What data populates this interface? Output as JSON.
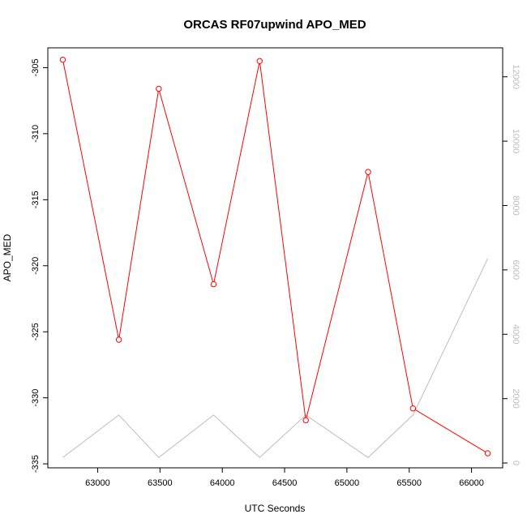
{
  "chart_data": {
    "type": "line",
    "title": "ORCAS RF07upwind APO_MED",
    "xlabel": "UTC Seconds",
    "ylabel": "APO_MED",
    "xlim": [
      62600,
      66250
    ],
    "ylim": [
      -335.3,
      -303.5
    ],
    "y2lim": [
      -150,
      12900
    ],
    "x_ticks": [
      63000,
      63500,
      64000,
      64500,
      65000,
      65500,
      66000
    ],
    "y_ticks": [
      -335,
      -330,
      -325,
      -320,
      -315,
      -310,
      -305
    ],
    "y2_ticks": [
      0,
      2000,
      4000,
      6000,
      8000,
      10000,
      12000
    ],
    "grid": false,
    "series": [
      {
        "color": "#ff0000",
        "marker": "circle-open",
        "axis": "left",
        "x": [
          62720,
          63170,
          63490,
          63930,
          64300,
          64670,
          65170,
          65530,
          66130
        ],
        "y": [
          -304.4,
          -325.6,
          -306.6,
          -321.4,
          -304.5,
          -331.7,
          -312.9,
          -330.8,
          -334.2
        ]
      },
      {
        "color": "#bebebe",
        "marker": "none",
        "axis": "right",
        "x": [
          62720,
          63170,
          63490,
          63930,
          64300,
          64670,
          65170,
          65530,
          66130
        ],
        "y": [
          170,
          1490,
          170,
          1490,
          170,
          1490,
          170,
          1490,
          6350
        ]
      }
    ]
  }
}
